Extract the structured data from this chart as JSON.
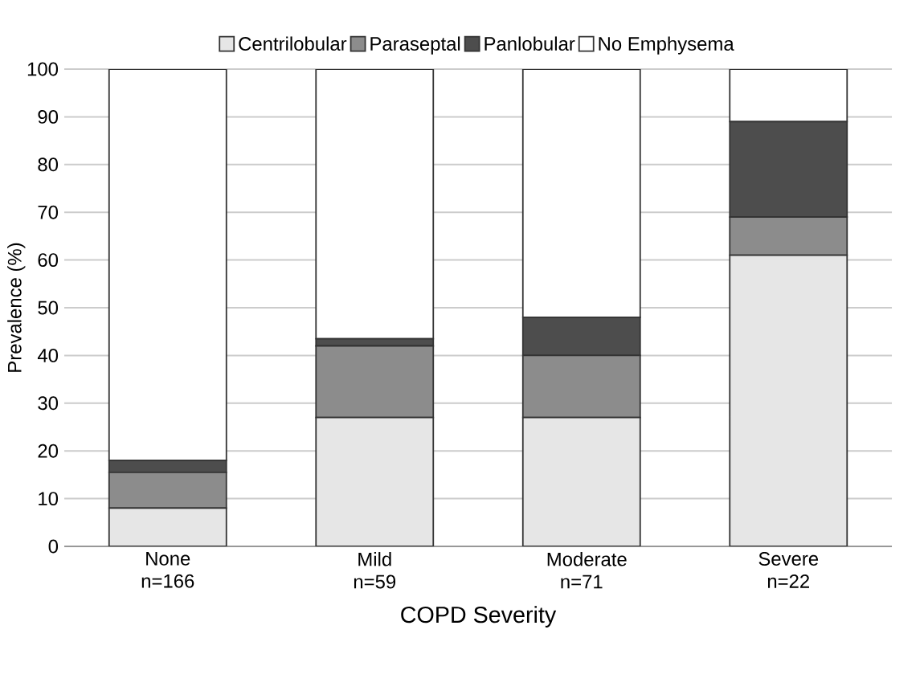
{
  "chart_data": {
    "type": "bar",
    "stacked": true,
    "xlabel": "COPD Severity",
    "ylabel": "Prevalence (%)",
    "categories": [
      "None n=166",
      "Mild n=59",
      "Moderate n=71",
      "Severe n=22"
    ],
    "series": [
      {
        "name": "Centrilobular",
        "color": "#e6e6e6",
        "values": [
          8,
          27,
          27,
          61
        ]
      },
      {
        "name": "Paraseptal",
        "color": "#8c8c8c",
        "values": [
          7.5,
          15,
          13,
          8
        ]
      },
      {
        "name": "Panlobular",
        "color": "#4d4d4d",
        "values": [
          2.5,
          1.5,
          8,
          20
        ]
      },
      {
        "name": "No Emphysema",
        "color": "#ffffff",
        "values": [
          82,
          56.5,
          52,
          11
        ]
      }
    ],
    "ylim": [
      0,
      100
    ],
    "yticks": [
      0,
      10,
      20,
      30,
      40,
      50,
      60,
      70,
      80,
      90,
      100
    ],
    "grid": "y",
    "legend": "top"
  }
}
